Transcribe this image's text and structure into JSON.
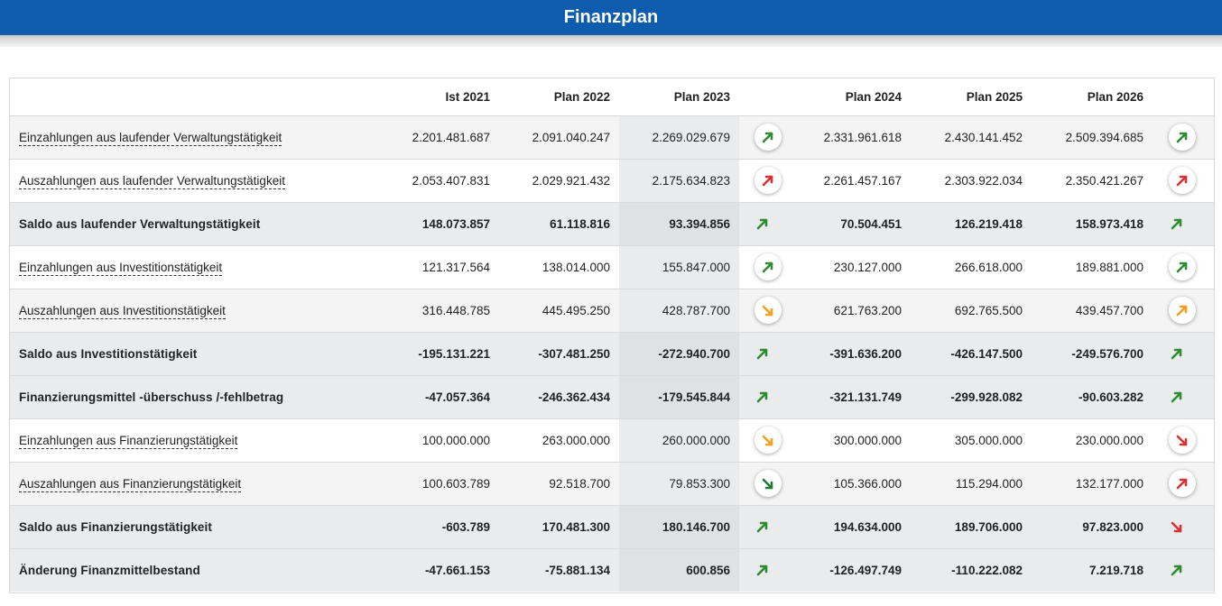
{
  "title": "Finanzplan",
  "colors": {
    "header": "#0d5cad",
    "up_good": "#2e8b2e",
    "up_bad": "#d93030",
    "down_warn": "#f0a020",
    "down_good": "#1f7a3a",
    "down_bad": "#d93030"
  },
  "columns": [
    "Ist 2021",
    "Plan 2022",
    "Plan 2023",
    "Plan 2024",
    "Plan 2025",
    "Plan 2026"
  ],
  "rows": [
    {
      "label": "Einzahlungen aus laufender Verwaltungstätigkeit",
      "values": [
        "2.201.481.687",
        "2.091.040.247",
        "2.269.029.679",
        "2.331.961.618",
        "2.430.141.452",
        "2.509.394.685"
      ],
      "arrows": [
        "up-green",
        "up-green"
      ]
    },
    {
      "label": "Auszahlungen aus laufender Verwaltungstätigkeit",
      "values": [
        "2.053.407.831",
        "2.029.921.432",
        "2.175.634.823",
        "2.261.457.167",
        "2.303.922.034",
        "2.350.421.267"
      ],
      "arrows": [
        "up-red",
        "up-red"
      ]
    },
    {
      "label": "Saldo aus laufender Verwaltungstätigkeit",
      "values": [
        "148.073.857",
        "61.118.816",
        "93.394.856",
        "70.504.451",
        "126.219.418",
        "158.973.418"
      ],
      "arrows": [
        "up-green",
        "up-green"
      ]
    },
    {
      "label": "Einzahlungen aus Investitionstätigkeit",
      "values": [
        "121.317.564",
        "138.014.000",
        "155.847.000",
        "230.127.000",
        "266.618.000",
        "189.881.000"
      ],
      "arrows": [
        "up-green",
        "up-green"
      ]
    },
    {
      "label": "Auszahlungen aus Investitionstätigkeit",
      "values": [
        "316.448.785",
        "445.495.250",
        "428.787.700",
        "621.763.200",
        "692.765.500",
        "439.457.700"
      ],
      "arrows": [
        "down-orange",
        "up-orange"
      ]
    },
    {
      "label": "Saldo aus Investitionstätigkeit",
      "values": [
        "-195.131.221",
        "-307.481.250",
        "-272.940.700",
        "-391.636.200",
        "-426.147.500",
        "-249.576.700"
      ],
      "arrows": [
        "up-green",
        "up-green"
      ]
    },
    {
      "label": "Finanzierungsmittel -überschuss /-fehlbetrag",
      "values": [
        "-47.057.364",
        "-246.362.434",
        "-179.545.844",
        "-321.131.749",
        "-299.928.082",
        "-90.603.282"
      ],
      "arrows": [
        "up-green",
        "up-green"
      ]
    },
    {
      "label": "Einzahlungen aus Finanzierungstätigkeit",
      "values": [
        "100.000.000",
        "263.000.000",
        "260.000.000",
        "300.000.000",
        "305.000.000",
        "230.000.000"
      ],
      "arrows": [
        "down-orange",
        "down-red"
      ]
    },
    {
      "label": "Auszahlungen aus Finanzierungstätigkeit",
      "values": [
        "100.603.789",
        "92.518.700",
        "79.853.300",
        "105.366.000",
        "115.294.000",
        "132.177.000"
      ],
      "arrows": [
        "down-green",
        "up-red"
      ]
    },
    {
      "label": "Saldo aus Finanzierungstätigkeit",
      "values": [
        "-603.789",
        "170.481.300",
        "180.146.700",
        "194.634.000",
        "189.706.000",
        "97.823.000"
      ],
      "arrows": [
        "up-green",
        "down-red"
      ]
    },
    {
      "label": "Änderung Finanzmittelbestand",
      "values": [
        "-47.661.153",
        "-75.881.134",
        "600.856",
        "-126.497.749",
        "-110.222.082",
        "7.219.718"
      ],
      "arrows": [
        "up-green",
        "up-green"
      ]
    }
  ]
}
